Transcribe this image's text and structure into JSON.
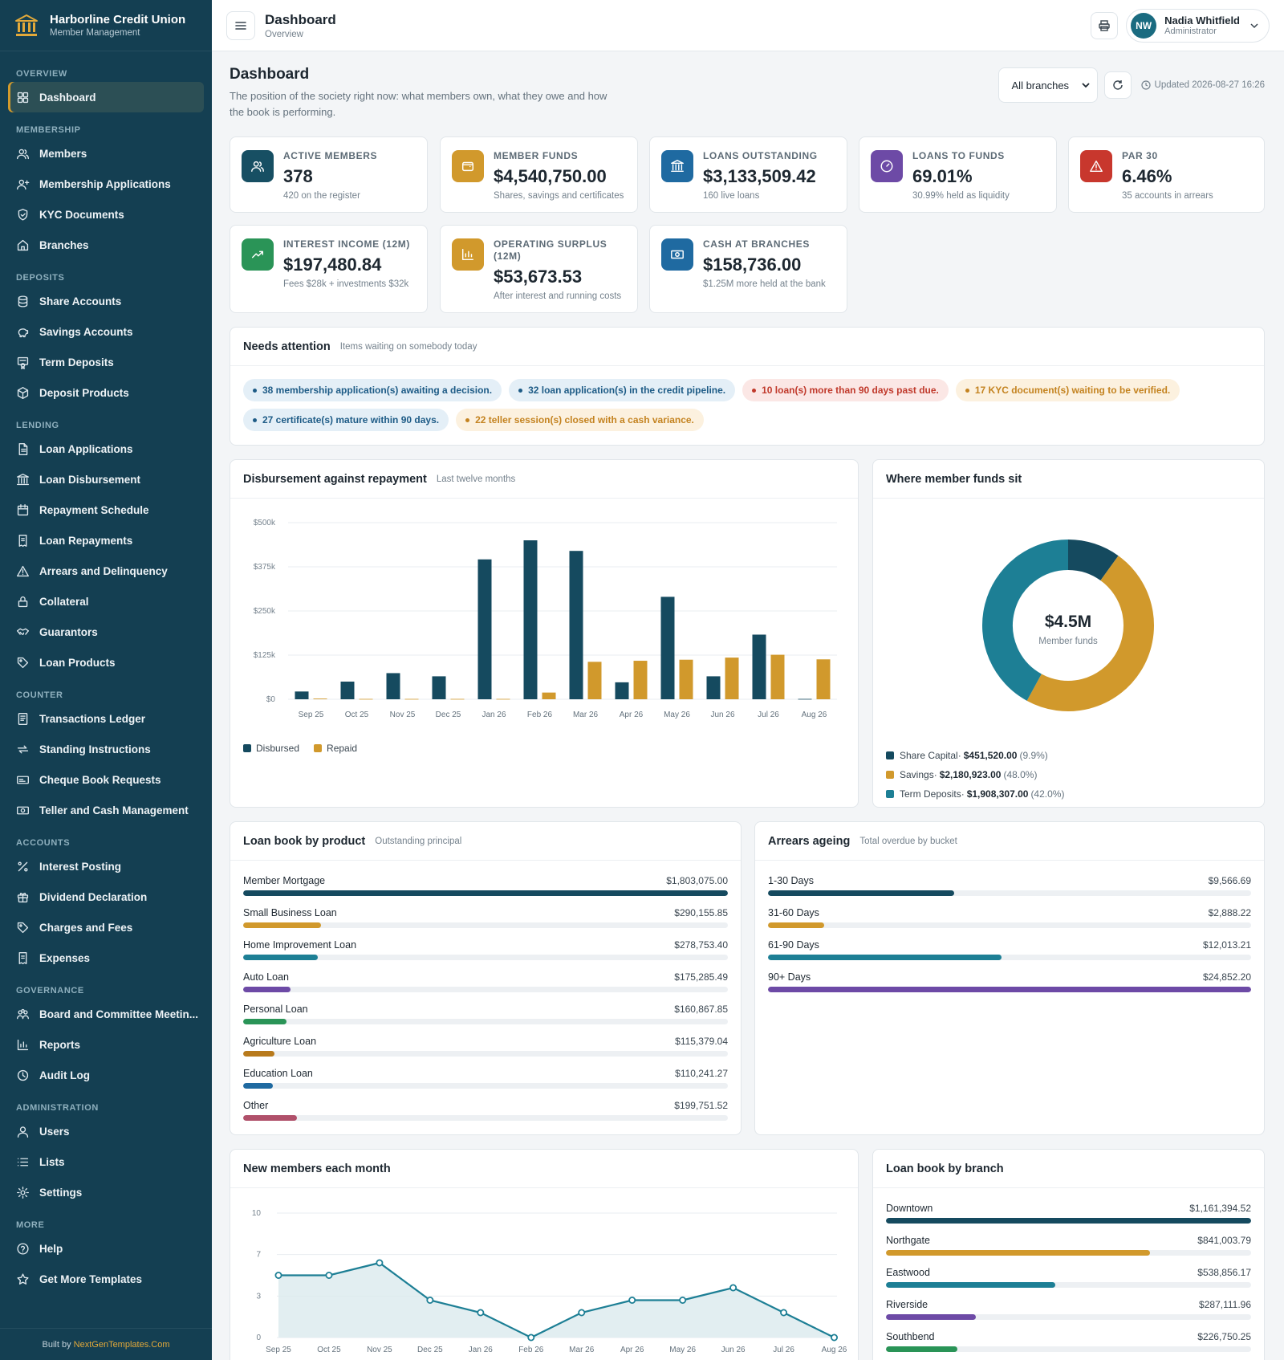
{
  "app": {
    "name": "Harborline Credit Union",
    "subtitle": "Member Management"
  },
  "nav": [
    {
      "group": "Overview",
      "items": [
        {
          "label": "Dashboard",
          "icon": "grid-icon",
          "active": true
        }
      ]
    },
    {
      "group": "Membership",
      "items": [
        {
          "label": "Members",
          "icon": "users-icon"
        },
        {
          "label": "Membership Applications",
          "icon": "user-plus-icon"
        },
        {
          "label": "KYC Documents",
          "icon": "shield-check-icon"
        },
        {
          "label": "Branches",
          "icon": "home-icon"
        }
      ]
    },
    {
      "group": "Deposits",
      "items": [
        {
          "label": "Share Accounts",
          "icon": "database-icon"
        },
        {
          "label": "Savings Accounts",
          "icon": "piggy-bank-icon"
        },
        {
          "label": "Term Deposits",
          "icon": "certificate-icon"
        },
        {
          "label": "Deposit Products",
          "icon": "box-icon"
        }
      ]
    },
    {
      "group": "Lending",
      "items": [
        {
          "label": "Loan Applications",
          "icon": "file-text-icon"
        },
        {
          "label": "Loan Disbursement",
          "icon": "bank-icon"
        },
        {
          "label": "Repayment Schedule",
          "icon": "calendar-icon"
        },
        {
          "label": "Loan Repayments",
          "icon": "receipt-icon"
        },
        {
          "label": "Arrears and Delinquency",
          "icon": "alert-triangle-icon"
        },
        {
          "label": "Collateral",
          "icon": "lock-icon"
        },
        {
          "label": "Guarantors",
          "icon": "handshake-icon"
        },
        {
          "label": "Loan Products",
          "icon": "tag-icon"
        }
      ]
    },
    {
      "group": "Counter",
      "items": [
        {
          "label": "Transactions Ledger",
          "icon": "ledger-icon"
        },
        {
          "label": "Standing Instructions",
          "icon": "repeat-icon"
        },
        {
          "label": "Cheque Book Requests",
          "icon": "cheque-icon"
        },
        {
          "label": "Teller and Cash Management",
          "icon": "cash-icon"
        }
      ]
    },
    {
      "group": "Accounts",
      "items": [
        {
          "label": "Interest Posting",
          "icon": "percent-icon"
        },
        {
          "label": "Dividend Declaration",
          "icon": "gift-icon"
        },
        {
          "label": "Charges and Fees",
          "icon": "tag-icon"
        },
        {
          "label": "Expenses",
          "icon": "receipt-icon"
        }
      ]
    },
    {
      "group": "Governance",
      "items": [
        {
          "label": "Board and Committee Meetin...",
          "icon": "people-icon"
        },
        {
          "label": "Reports",
          "icon": "bar-chart-icon"
        },
        {
          "label": "Audit Log",
          "icon": "clock-icon"
        }
      ]
    },
    {
      "group": "Administration",
      "items": [
        {
          "label": "Users",
          "icon": "user-icon"
        },
        {
          "label": "Lists",
          "icon": "list-icon"
        },
        {
          "label": "Settings",
          "icon": "gear-icon"
        }
      ]
    },
    {
      "group": "More",
      "items": [
        {
          "label": "Help",
          "icon": "help-circle-icon"
        },
        {
          "label": "Get More Templates",
          "icon": "star-icon"
        }
      ]
    }
  ],
  "footer": {
    "prefix": "Built by ",
    "link": "NextGenTemplates.Com"
  },
  "topbar": {
    "title": "Dashboard",
    "subtitle": "Overview",
    "user_name": "Nadia Whitfield",
    "user_role": "Administrator",
    "user_initials": "NW"
  },
  "page": {
    "title": "Dashboard",
    "description": "The position of the society right now: what members own, what they owe and how the book is performing.",
    "branch_filter": "All branches",
    "updated": "Updated 2026-08-27 16:26"
  },
  "kpis": [
    {
      "label": "Active Members",
      "value": "378",
      "sub": "420 on the register",
      "color": "#174f63",
      "icon": "users-icon"
    },
    {
      "label": "Member Funds",
      "value": "$4,540,750.00",
      "sub": "Shares, savings and certificates",
      "color": "#d1992c",
      "icon": "wallet-icon"
    },
    {
      "label": "Loans Outstanding",
      "value": "$3,133,509.42",
      "sub": "160 live loans",
      "color": "#1f6aa1",
      "icon": "bank-icon"
    },
    {
      "label": "Loans to Funds",
      "value": "69.01%",
      "sub": "30.99% held as liquidity",
      "color": "#6d4aa6",
      "icon": "gauge-icon"
    },
    {
      "label": "PAR 30",
      "value": "6.46%",
      "sub": "35 accounts in arrears",
      "color": "#c8372d",
      "icon": "alert-triangle-icon"
    },
    {
      "label": "Interest Income (12M)",
      "value": "$197,480.84",
      "sub": "Fees $28k + investments $32k",
      "color": "#2a9457",
      "icon": "trending-up-icon"
    },
    {
      "label": "Operating Surplus (12M)",
      "value": "$53,673.53",
      "sub": "After interest and running costs",
      "color": "#d1992c",
      "icon": "bar-chart-icon"
    },
    {
      "label": "Cash at Branches",
      "value": "$158,736.00",
      "sub": "$1.25M more held at the bank",
      "color": "#1f6aa1",
      "icon": "cash-icon"
    }
  ],
  "attention": {
    "title": "Needs attention",
    "subtitle": "Items waiting on somebody today",
    "items": [
      {
        "text": "38 membership application(s) awaiting a decision.",
        "tone": "info"
      },
      {
        "text": "32 loan application(s) in the credit pipeline.",
        "tone": "info"
      },
      {
        "text": "10 loan(s) more than 90 days past due.",
        "tone": "danger"
      },
      {
        "text": "17 KYC document(s) waiting to be verified.",
        "tone": "warn"
      },
      {
        "text": "27 certificate(s) mature within 90 days.",
        "tone": "info"
      },
      {
        "text": "22 teller session(s) closed with a cash variance.",
        "tone": "warn"
      }
    ]
  },
  "disbursement": {
    "title": "Disbursement against repayment",
    "subtitle": "Last twelve months"
  },
  "funds": {
    "title": "Where member funds sit",
    "center_value": "$4.5M",
    "center_label": "Member funds"
  },
  "loan_book": {
    "title": "Loan book by product",
    "subtitle": "Outstanding principal",
    "items": [
      {
        "label": "Member Mortgage",
        "value": "$1,803,075.00",
        "amount": 1803075.0,
        "color": "#154a5f"
      },
      {
        "label": "Small Business Loan",
        "value": "$290,155.85",
        "amount": 290155.85,
        "color": "#d1992c"
      },
      {
        "label": "Home Improvement Loan",
        "value": "$278,753.40",
        "amount": 278753.4,
        "color": "#1d7f95"
      },
      {
        "label": "Auto Loan",
        "value": "$175,285.49",
        "amount": 175285.49,
        "color": "#6d4aa6"
      },
      {
        "label": "Personal Loan",
        "value": "$160,867.85",
        "amount": 160867.85,
        "color": "#2a9457"
      },
      {
        "label": "Agriculture Loan",
        "value": "$115,379.04",
        "amount": 115379.04,
        "color": "#b87a1c"
      },
      {
        "label": "Education Loan",
        "value": "$110,241.27",
        "amount": 110241.27,
        "color": "#1f6aa1"
      },
      {
        "label": "Other",
        "value": "$199,751.52",
        "amount": 199751.52,
        "color": "#b0506a"
      }
    ]
  },
  "arrears": {
    "title": "Arrears ageing",
    "subtitle": "Total overdue by bucket",
    "items": [
      {
        "label": "1-30 Days",
        "value": "$9,566.69",
        "amount": 9566.69,
        "color": "#154a5f"
      },
      {
        "label": "31-60 Days",
        "value": "$2,888.22",
        "amount": 2888.22,
        "color": "#d1992c"
      },
      {
        "label": "61-90 Days",
        "value": "$12,013.21",
        "amount": 12013.21,
        "color": "#1d7f95"
      },
      {
        "label": "90+ Days",
        "value": "$24,852.20",
        "amount": 24852.2,
        "color": "#6d4aa6"
      }
    ]
  },
  "new_members": {
    "title": "New members each month"
  },
  "branch_book": {
    "title": "Loan book by branch",
    "items": [
      {
        "label": "Downtown",
        "value": "$1,161,394.52",
        "amount": 1161394.52,
        "color": "#154a5f"
      },
      {
        "label": "Northgate",
        "value": "$841,003.79",
        "amount": 841003.79,
        "color": "#d1992c"
      },
      {
        "label": "Eastwood",
        "value": "$538,856.17",
        "amount": 538856.17,
        "color": "#1d7f95"
      },
      {
        "label": "Riverside",
        "value": "$287,111.96",
        "amount": 287111.96,
        "color": "#6d4aa6"
      },
      {
        "label": "Southbend",
        "value": "$226,750.25",
        "amount": 226750.25,
        "color": "#2a9457"
      }
    ]
  },
  "chart_data": [
    {
      "type": "bar",
      "categories": [
        "Sep 25",
        "Oct 25",
        "Nov 25",
        "Dec 25",
        "Jan 26",
        "Feb 26",
        "Mar 26",
        "Apr 26",
        "May 26",
        "Jun 26",
        "Jul 26",
        "Aug 26"
      ],
      "series": [
        {
          "name": "Disbursed",
          "color": "#154a5f",
          "values": [
            22000,
            50000,
            74000,
            65000,
            396000,
            450000,
            420000,
            48000,
            290000,
            65000,
            183000,
            1000
          ]
        },
        {
          "name": "Repaid",
          "color": "#d1992c",
          "values": [
            2000,
            1000,
            1000,
            1000,
            1000,
            19000,
            106000,
            109000,
            112000,
            118000,
            126000,
            113000
          ]
        }
      ],
      "yticks": [
        "$0",
        "$125k",
        "$250k",
        "$375k",
        "$500k"
      ],
      "ylim": [
        0,
        500000
      ],
      "legend": "bottom-left",
      "grid": true
    },
    {
      "type": "pie",
      "labels": [
        "Share Capital",
        "Savings",
        "Term Deposits"
      ],
      "values": [
        451520.0,
        2180923.0,
        1908307.0
      ],
      "value_labels": [
        "$451,520.00",
        "$2,180,923.00",
        "$1,908,307.00"
      ],
      "percent_labels": [
        "(9.9%)",
        "(48.0%)",
        "(42.0%)"
      ],
      "colors": [
        "#154a5f",
        "#d1992c",
        "#1d7f95"
      ],
      "legend": "bottom"
    },
    {
      "type": "area",
      "x": [
        "Sep 25",
        "Oct 25",
        "Nov 25",
        "Dec 25",
        "Jan 26",
        "Feb 26",
        "Mar 26",
        "Apr 26",
        "May 26",
        "Jun 26",
        "Jul 26",
        "Aug 26"
      ],
      "values": [
        5,
        5,
        6,
        3,
        2,
        0,
        2,
        3,
        3,
        4,
        2,
        0
      ],
      "yticks": [
        "0",
        "3",
        "7",
        "10"
      ],
      "ylim": [
        0,
        10
      ],
      "color": "#1d7f95",
      "grid": true
    }
  ]
}
